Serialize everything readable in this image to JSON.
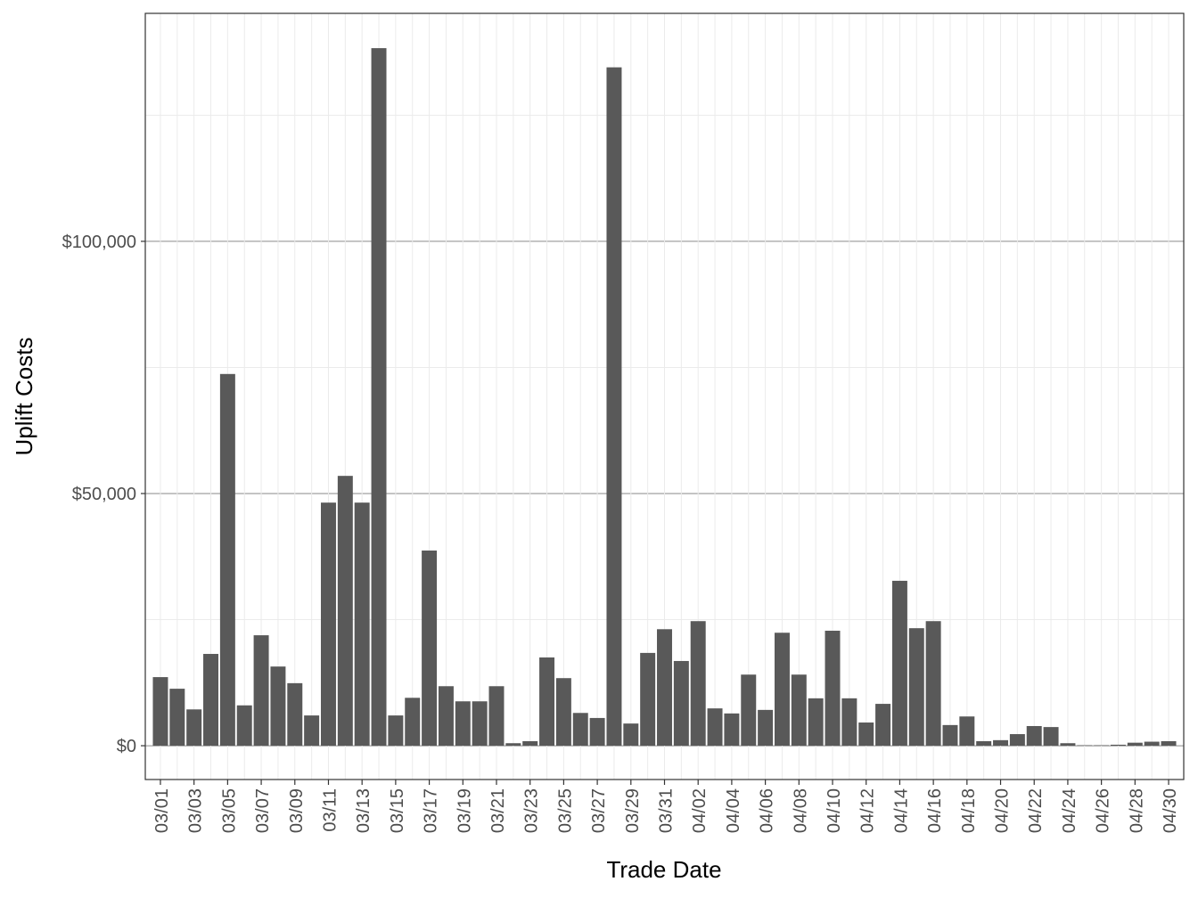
{
  "chart_data": {
    "type": "bar",
    "x_label": "Trade Date",
    "y_label": "Uplift Costs",
    "categories": [
      "03/01",
      null,
      "03/03",
      null,
      "03/05",
      null,
      "03/07",
      null,
      "03/09",
      null,
      "03/11",
      null,
      "03/13",
      null,
      "03/15",
      null,
      "03/17",
      null,
      "03/19",
      null,
      "03/21",
      null,
      "03/23",
      null,
      "03/25",
      null,
      "03/27",
      null,
      "03/29",
      null,
      "03/31",
      null,
      "04/02",
      null,
      "04/04",
      null,
      "04/06",
      null,
      "04/08",
      null,
      "04/10",
      null,
      "04/12",
      null,
      "04/14",
      null,
      "04/16",
      null,
      "04/18",
      null,
      "04/20",
      null,
      "04/22",
      null,
      "04/24",
      null,
      "04/26",
      null,
      "04/28",
      null,
      "04/30"
    ],
    "values": [
      13600,
      11300,
      7200,
      18200,
      73700,
      8000,
      21900,
      15700,
      12400,
      6000,
      48200,
      53500,
      48200,
      138300,
      6000,
      9500,
      38700,
      11800,
      8800,
      8800,
      11800,
      500,
      900,
      17500,
      13400,
      6500,
      5500,
      134500,
      4400,
      18400,
      23100,
      16800,
      24700,
      7400,
      6400,
      14100,
      7100,
      22400,
      14100,
      9400,
      22800,
      9400,
      4600,
      8300,
      32700,
      23300,
      24700,
      4100,
      5800,
      900,
      1100,
      2300,
      3900,
      3700,
      500,
      100,
      100,
      200,
      600,
      800,
      900
    ],
    "color": "#595959",
    "ylim": [
      -6700,
      145200
    ],
    "yticks": [
      {
        "value": 0,
        "label": "$0"
      },
      {
        "value": 50000,
        "label": "$50,000"
      },
      {
        "value": 100000,
        "label": "$100,000"
      }
    ],
    "grid": true
  }
}
